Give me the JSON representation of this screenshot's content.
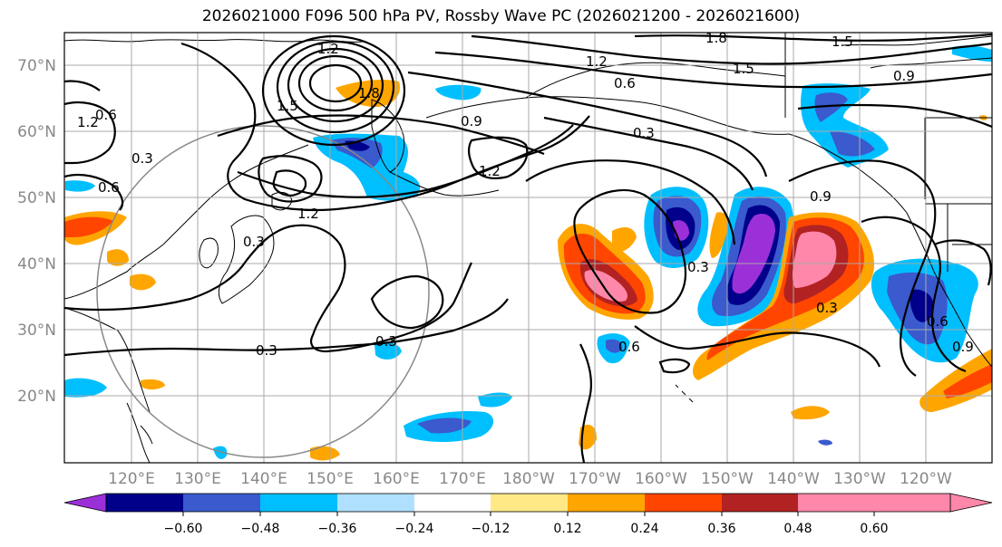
{
  "title": "2026021000 F096 500 hPa PV, Rossby Wave PC (2026021200 - 2026021600)",
  "map": {
    "lat_labels": [
      "70°N",
      "60°N",
      "50°N",
      "40°N",
      "30°N",
      "20°N"
    ],
    "lon_labels": [
      "120°E",
      "130°E",
      "140°E",
      "150°E",
      "160°E",
      "170°E",
      "180°W",
      "170°W",
      "160°W",
      "150°W",
      "140°W",
      "130°W",
      "120°W"
    ],
    "contour_labels": [
      "1.2",
      "1.8",
      "1.5",
      "1.2",
      "1.5",
      "0.9",
      "0.6",
      "0.9",
      "0.3",
      "1.2",
      "1.5",
      "1.8",
      "0.6",
      "0.3",
      "0.6",
      "1.2",
      "0.3",
      "0.3",
      "0.3",
      "0.3",
      "0.6",
      "0.9",
      "0.3",
      "0.6",
      "1.2",
      "0.9"
    ]
  },
  "colorbar": {
    "colors": [
      "#9b30d9",
      "#00008b",
      "#3a5acd",
      "#00bfff",
      "#b0e0ff",
      "#ffffff",
      "#ffe986",
      "#ffa500",
      "#ff4500",
      "#b22222",
      "#ff88aa"
    ],
    "tick_labels": [
      "−0.60",
      "−0.48",
      "−0.36",
      "−0.24",
      "−0.12",
      "0.12",
      "0.24",
      "0.36",
      "0.48",
      "0.60"
    ]
  }
}
